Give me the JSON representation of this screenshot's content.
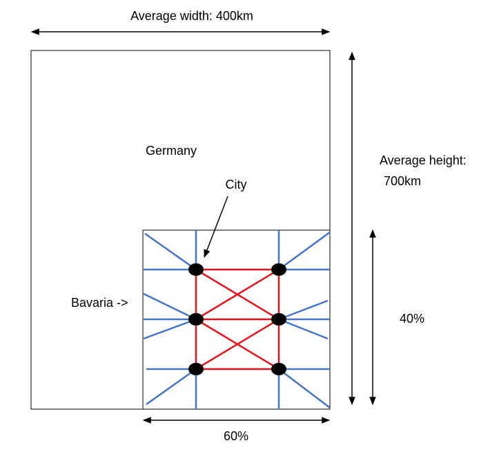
{
  "labels": {
    "width": "Average width: 400km",
    "height_line1": "Average height:",
    "height_line2": "700km",
    "country": "Germany",
    "city": "City",
    "region": "Bavaria ->",
    "region_height": "40%",
    "region_width": "60%"
  }
}
